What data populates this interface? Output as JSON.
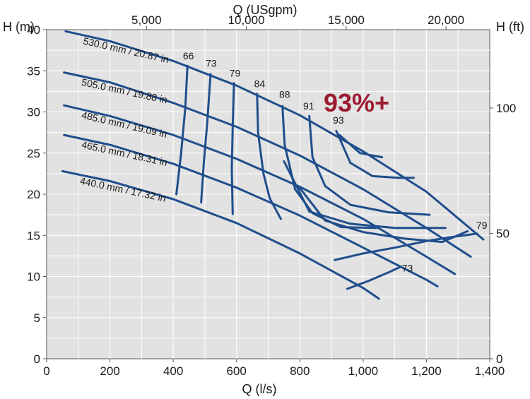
{
  "chart_data": {
    "type": "line",
    "title": "",
    "xlabel": "Q (l/s)",
    "ylabel": "H (m)",
    "x2label": "Q (USgpm)",
    "y2label": "H (ft)",
    "xlim": [
      0,
      1400
    ],
    "ylim": [
      0,
      40
    ],
    "x_ticks": [
      0,
      200,
      400,
      600,
      800,
      1000,
      1200,
      1400
    ],
    "x_tick_labels": [
      "0",
      "200",
      "400",
      "600",
      "800",
      "1,000",
      "1,200",
      "1,400"
    ],
    "y_ticks": [
      0,
      5,
      10,
      15,
      20,
      25,
      30,
      35,
      40
    ],
    "y_tick_labels": [
      "0",
      "5",
      "10",
      "15",
      "20",
      "25",
      "30",
      "35",
      "40"
    ],
    "x2_ticks": [
      5000,
      10000,
      15000,
      20000
    ],
    "x2_tick_labels": [
      "5,000",
      "10,000",
      "15,000",
      "20,000"
    ],
    "y2_ticks": [
      0,
      50,
      100
    ],
    "y2_tick_labels": [
      "0",
      "50",
      "100"
    ],
    "grid": true,
    "highlight": "93%+",
    "colors": {
      "curve": "#1f4e8c",
      "plot_bg": "#e2e2e2",
      "grid": "#ffffff",
      "highlight": "#9b1b30"
    },
    "impeller_curves": [
      {
        "label": "530.0 mm / 20.87 in",
        "x": [
          60,
          200,
          400,
          600,
          800,
          1000,
          1200,
          1380
        ],
        "y": [
          39.8,
          38.6,
          36.2,
          33.2,
          29.6,
          25.2,
          20.3,
          14.5
        ]
      },
      {
        "label": "505.0 mm / 19.88 in",
        "x": [
          55,
          200,
          400,
          600,
          800,
          1000,
          1200,
          1340
        ],
        "y": [
          34.8,
          33.6,
          31.1,
          28.2,
          24.7,
          20.6,
          15.9,
          12.4
        ]
      },
      {
        "label": "485.0 mm / 19.09 in",
        "x": [
          55,
          200,
          400,
          600,
          800,
          1000,
          1200,
          1290
        ],
        "y": [
          30.8,
          29.5,
          27.2,
          24.3,
          20.9,
          17.0,
          12.4,
          10.3
        ]
      },
      {
        "label": "465.0 mm / 18.31 in",
        "x": [
          55,
          200,
          400,
          600,
          800,
          1000,
          1200,
          1235
        ],
        "y": [
          27.2,
          26.0,
          23.7,
          20.8,
          17.4,
          13.5,
          9.6,
          8.8
        ]
      },
      {
        "label": "440.0 mm / 17.32 in",
        "x": [
          50,
          200,
          400,
          600,
          800,
          1000,
          1050
        ],
        "y": [
          22.8,
          21.6,
          19.4,
          16.5,
          12.8,
          8.6,
          7.3
        ]
      }
    ],
    "efficiency_curves": [
      {
        "label": "66",
        "x": [
          445,
          438,
          425,
          410
        ],
        "y": [
          35.6,
          30.5,
          25.0,
          20.0
        ]
      },
      {
        "label": "73",
        "x": [
          518,
          508,
          497,
          488
        ],
        "y": [
          34.6,
          29.0,
          24.0,
          19.0
        ]
      },
      {
        "label": "79",
        "x": [
          592,
          588,
          585,
          588
        ],
        "y": [
          33.5,
          28.2,
          23.0,
          17.6
        ]
      },
      {
        "label": "84",
        "x": [
          665,
          668,
          685,
          705,
          740
        ],
        "y": [
          32.2,
          27.5,
          22.5,
          19.5,
          17.0
        ]
      },
      {
        "label": "88",
        "x": [
          745,
          752,
          785,
          840,
          930,
          1040
        ],
        "y": [
          30.7,
          26.0,
          20.6,
          17.7,
          16.0,
          15.9
        ]
      },
      {
        "label": "91",
        "x": [
          830,
          840,
          880,
          960,
          1080,
          1210
        ],
        "y": [
          29.5,
          24.5,
          21.0,
          18.7,
          17.8,
          17.5
        ]
      },
      {
        "label": "93",
        "x": [
          915,
          960,
          1030,
          1110,
          1160
        ],
        "y": [
          27.7,
          23.8,
          22.2,
          22.0,
          22.0
        ]
      },
      {
        "label": "",
        "x": [
          925,
          990,
          1060
        ],
        "y": [
          27.2,
          25.0,
          24.5
        ]
      },
      {
        "label": "",
        "x": [
          750,
          830,
          960,
          1100,
          1260
        ],
        "y": [
          24.0,
          17.9,
          16.4,
          15.9,
          15.9
        ]
      },
      {
        "label": "",
        "x": [
          795,
          880,
          1000,
          1130,
          1250,
          1330
        ],
        "y": [
          21.0,
          16.8,
          15.4,
          14.6,
          14.2,
          15.5
        ]
      },
      {
        "label": "79",
        "x": [
          910,
          1000,
          1100,
          1200,
          1280,
          1360
        ],
        "y": [
          12.0,
          12.8,
          13.5,
          14.3,
          14.8,
          15.2
        ]
      },
      {
        "label": "73",
        "x": [
          950,
          1020,
          1080,
          1120
        ],
        "y": [
          8.5,
          9.5,
          10.5,
          11.2
        ]
      }
    ],
    "efficiency_label_points": [
      {
        "text": "66",
        "x": 448,
        "y": 36.4
      },
      {
        "text": "73",
        "x": 520,
        "y": 35.5
      },
      {
        "text": "79",
        "x": 595,
        "y": 34.3
      },
      {
        "text": "84",
        "x": 673,
        "y": 33.0
      },
      {
        "text": "88",
        "x": 752,
        "y": 31.7
      },
      {
        "text": "91",
        "x": 828,
        "y": 30.3
      },
      {
        "text": "93",
        "x": 922,
        "y": 28.6
      },
      {
        "text": "79",
        "x": 1375,
        "y": 15.8
      },
      {
        "text": "73",
        "x": 1140,
        "y": 10.6
      }
    ]
  }
}
